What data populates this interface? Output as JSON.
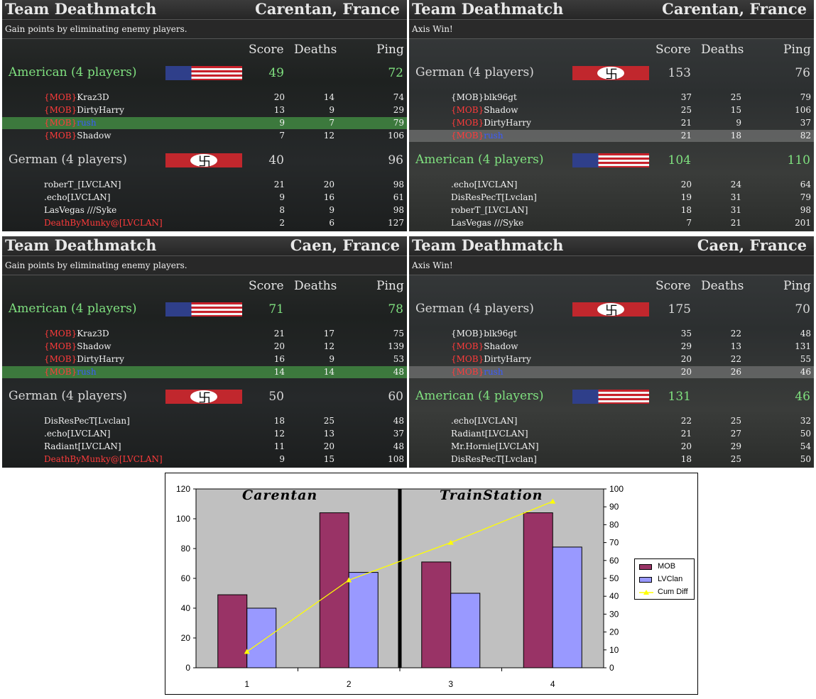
{
  "panels": [
    {
      "mode": "Team Deathmatch",
      "map": "Carentan, France",
      "subtitle": "Gain points by eliminating enemy players.",
      "cols": {
        "score": "Score",
        "deaths": "Deaths",
        "ping": "Ping"
      },
      "team1": {
        "name": "American (4 players)",
        "color": "#7fe07f",
        "flag": "us",
        "score": "49",
        "ping": "72"
      },
      "team1_rows": [
        {
          "pre": "{MOB}",
          "name": "Kraz3D",
          "score": "20",
          "deaths": "14",
          "ping": "74",
          "hl": ""
        },
        {
          "pre": "{MOB}",
          "name": "DirtyHarry",
          "score": "13",
          "deaths": "9",
          "ping": "29",
          "hl": ""
        },
        {
          "pre": "{MOB}",
          "name": "rush",
          "score": "9",
          "deaths": "7",
          "ping": "79",
          "hl": "green"
        },
        {
          "pre": "{MOB}",
          "name": "Shadow",
          "score": "7",
          "deaths": "12",
          "ping": "106",
          "hl": ""
        }
      ],
      "team2": {
        "name": "German (4 players)",
        "color": "#d8d8d8",
        "flag": "de",
        "score": "40",
        "ping": "96"
      },
      "team2_rows": [
        {
          "pre": "",
          "name": "roberT_[LVCLAN]",
          "score": "21",
          "deaths": "20",
          "ping": "98",
          "hl": ""
        },
        {
          "pre": "",
          "name": ".echo[LVCLAN]",
          "score": "9",
          "deaths": "16",
          "ping": "61",
          "hl": ""
        },
        {
          "pre": "",
          "name": "LasVegas ///Syke",
          "score": "8",
          "deaths": "9",
          "ping": "98",
          "hl": ""
        },
        {
          "pre": "",
          "name": "DeathByMunky@[LVCLAN]",
          "score": "2",
          "deaths": "6",
          "ping": "127",
          "hl": ""
        }
      ]
    },
    {
      "mode": "Team Deathmatch",
      "map": "Carentan, France",
      "subtitle": "Axis Win!",
      "cols": {
        "score": "Score",
        "deaths": "Deaths",
        "ping": "Ping"
      },
      "team1": {
        "name": "German (4 players)",
        "color": "#d8d8d8",
        "flag": "de",
        "score": "153",
        "ping": "76"
      },
      "team1_rows": [
        {
          "pre": "",
          "name": "{MOB}blk96gt",
          "score": "37",
          "deaths": "25",
          "ping": "79",
          "hl": ""
        },
        {
          "pre": "{MOB}",
          "name": "Shadow",
          "score": "25",
          "deaths": "15",
          "ping": "106",
          "hl": ""
        },
        {
          "pre": "{MOB}",
          "name": "DirtyHarry",
          "score": "21",
          "deaths": "9",
          "ping": "37",
          "hl": ""
        },
        {
          "pre": "{MOB}",
          "name": "rush",
          "score": "21",
          "deaths": "18",
          "ping": "82",
          "hl": "grey"
        }
      ],
      "team2": {
        "name": "American (4 players)",
        "color": "#7fe07f",
        "flag": "us",
        "score": "104",
        "ping": "110"
      },
      "team2_rows": [
        {
          "pre": "",
          "name": ".echo[LVCLAN]",
          "score": "20",
          "deaths": "24",
          "ping": "64",
          "hl": ""
        },
        {
          "pre": "",
          "name": "DisResPecT[Lvclan]",
          "score": "19",
          "deaths": "31",
          "ping": "79",
          "hl": ""
        },
        {
          "pre": "",
          "name": "roberT_[LVCLAN]",
          "score": "18",
          "deaths": "31",
          "ping": "98",
          "hl": ""
        },
        {
          "pre": "",
          "name": "LasVegas ///Syke",
          "score": "7",
          "deaths": "21",
          "ping": "201",
          "hl": ""
        }
      ]
    },
    {
      "mode": "Team Deathmatch",
      "map": "Caen, France",
      "subtitle": "Gain points by eliminating enemy players.",
      "cols": {
        "score": "Score",
        "deaths": "Deaths",
        "ping": "Ping"
      },
      "team1": {
        "name": "American (4 players)",
        "color": "#7fe07f",
        "flag": "us",
        "score": "71",
        "ping": "78"
      },
      "team1_rows": [
        {
          "pre": "{MOB}",
          "name": "Kraz3D",
          "score": "21",
          "deaths": "17",
          "ping": "75",
          "hl": ""
        },
        {
          "pre": "{MOB}",
          "name": "Shadow",
          "score": "20",
          "deaths": "12",
          "ping": "139",
          "hl": ""
        },
        {
          "pre": "{MOB}",
          "name": "DirtyHarry",
          "score": "16",
          "deaths": "9",
          "ping": "53",
          "hl": ""
        },
        {
          "pre": "{MOB}",
          "name": "rush",
          "score": "14",
          "deaths": "14",
          "ping": "48",
          "hl": "green"
        }
      ],
      "team2": {
        "name": "German (4 players)",
        "color": "#d8d8d8",
        "flag": "de",
        "score": "50",
        "ping": "60"
      },
      "team2_rows": [
        {
          "pre": "",
          "name": "DisResPecT[Lvclan]",
          "score": "18",
          "deaths": "25",
          "ping": "48",
          "hl": ""
        },
        {
          "pre": "",
          "name": ".echo[LVCLAN]",
          "score": "12",
          "deaths": "13",
          "ping": "37",
          "hl": ""
        },
        {
          "pre": "",
          "name": "Radiant[LVCLAN]",
          "score": "11",
          "deaths": "20",
          "ping": "48",
          "hl": ""
        },
        {
          "pre": "",
          "name": "DeathByMunky@[LVCLAN]",
          "score": "9",
          "deaths": "15",
          "ping": "108",
          "hl": ""
        }
      ]
    },
    {
      "mode": "Team Deathmatch",
      "map": "Caen, France",
      "subtitle": "Axis Win!",
      "cols": {
        "score": "Score",
        "deaths": "Deaths",
        "ping": "Ping"
      },
      "team1": {
        "name": "German (4 players)",
        "color": "#d8d8d8",
        "flag": "de",
        "score": "175",
        "ping": "70"
      },
      "team1_rows": [
        {
          "pre": "",
          "name": "{MOB}blk96gt",
          "score": "35",
          "deaths": "22",
          "ping": "48",
          "hl": ""
        },
        {
          "pre": "{MOB}",
          "name": "Shadow",
          "score": "29",
          "deaths": "13",
          "ping": "131",
          "hl": ""
        },
        {
          "pre": "{MOB}",
          "name": "DirtyHarry",
          "score": "20",
          "deaths": "22",
          "ping": "55",
          "hl": ""
        },
        {
          "pre": "{MOB}",
          "name": "rush",
          "score": "20",
          "deaths": "26",
          "ping": "46",
          "hl": "grey"
        }
      ],
      "team2": {
        "name": "American (4 players)",
        "color": "#7fe07f",
        "flag": "us",
        "score": "131",
        "ping": "46"
      },
      "team2_rows": [
        {
          "pre": "",
          "name": ".echo[LVCLAN]",
          "score": "22",
          "deaths": "25",
          "ping": "32",
          "hl": ""
        },
        {
          "pre": "",
          "name": "Radiant[LVCLAN]",
          "score": "21",
          "deaths": "27",
          "ping": "50",
          "hl": ""
        },
        {
          "pre": "",
          "name": "Mr.Hornie[LVCLAN]",
          "score": "20",
          "deaths": "29",
          "ping": "54",
          "hl": ""
        },
        {
          "pre": "",
          "name": "DisResPecT[Lvclan]",
          "score": "18",
          "deaths": "25",
          "ping": "50",
          "hl": ""
        }
      ]
    }
  ],
  "chart_data": {
    "type": "bar",
    "categories": [
      "1",
      "2",
      "3",
      "4"
    ],
    "series": [
      {
        "name": "MOB",
        "values": [
          49,
          104,
          71,
          104
        ],
        "color": "#993366",
        "axis": "left"
      },
      {
        "name": "LVClan",
        "values": [
          40,
          64,
          50,
          81
        ],
        "color": "#9999ff",
        "axis": "left"
      },
      {
        "name": "Cum Diff",
        "values": [
          9,
          49,
          70,
          93
        ],
        "color": "#ffff00",
        "axis": "right",
        "kind": "line"
      }
    ],
    "ylim": [
      0,
      120
    ],
    "yticks": [
      "0",
      "20",
      "40",
      "60",
      "80",
      "100",
      "120"
    ],
    "y2lim": [
      0,
      100
    ],
    "y2ticks": [
      "0",
      "10",
      "20",
      "30",
      "40",
      "50",
      "60",
      "70",
      "80",
      "90",
      "100"
    ],
    "annotations": [
      "Carentan",
      "TrainStation"
    ],
    "legend": "right",
    "plot_bg": "#c0c0c0"
  }
}
